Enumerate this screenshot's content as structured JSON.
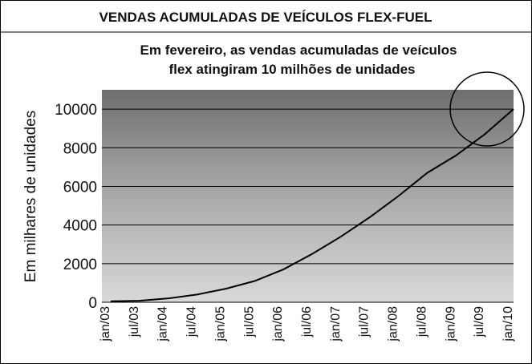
{
  "chart_data": {
    "type": "line",
    "title": "VENDAS ACUMULADAS DE VEÍCULOS FLEX-FUEL",
    "subtitle": [
      "Em fevereiro, as vendas acumuladas de veículos",
      "flex atingiram 10 milhões de unidades"
    ],
    "y_label": "Em milhares de unidades",
    "categories": [
      "jan/03",
      "jul/03",
      "jan/04",
      "jul/04",
      "jan/05",
      "jul/05",
      "jan/06",
      "jul/06",
      "jan/07",
      "jul/07",
      "jan/08",
      "jul/08",
      "jan/09",
      "jul/09",
      "jan/10"
    ],
    "values": [
      50,
      80,
      200,
      400,
      700,
      1100,
      1700,
      2500,
      3400,
      4400,
      5500,
      6700,
      7600,
      8700,
      10000
    ],
    "color": "#000000",
    "ylim": [
      0,
      11000
    ],
    "yticks": [
      0,
      2000,
      4000,
      6000,
      8000,
      10000
    ],
    "grid": true
  }
}
